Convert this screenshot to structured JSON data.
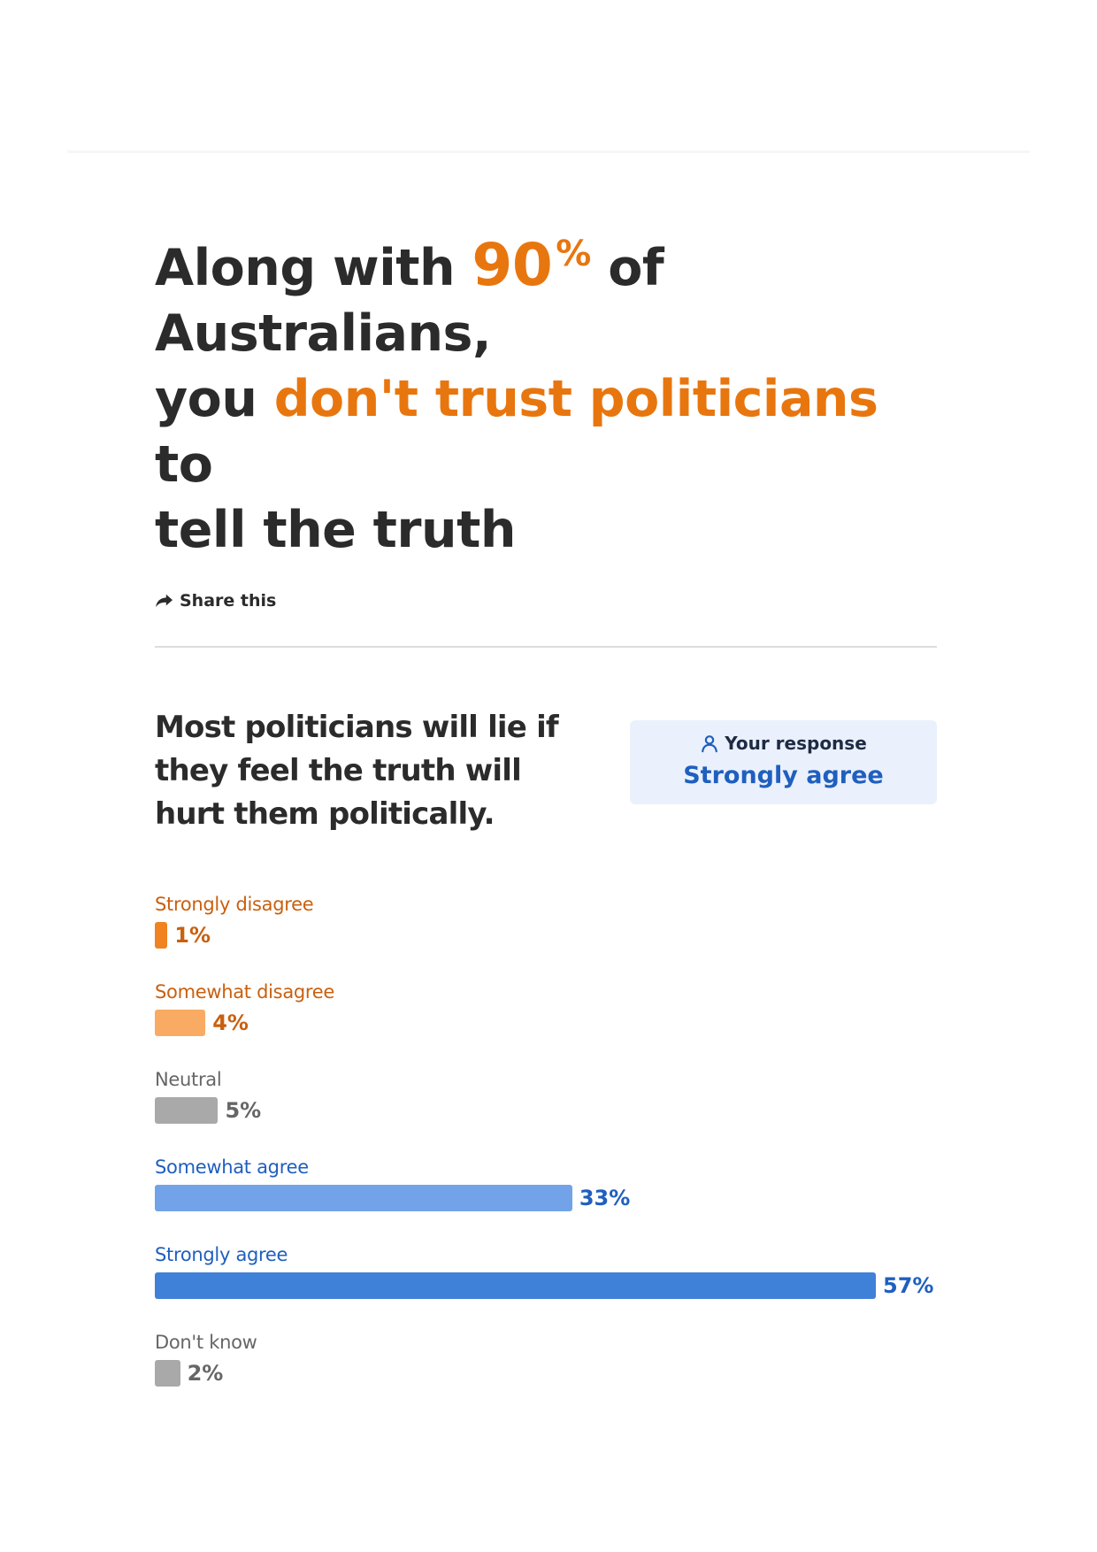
{
  "headline": {
    "line1_pre": "Along with ",
    "pct_number": "90",
    "pct_sign": "%",
    "line1_post": " of Australians,",
    "line2_pre": "you ",
    "line2_accent": "don't trust politicians",
    "line2_post": " to",
    "line3": "tell the truth"
  },
  "share": {
    "label": "Share this",
    "icon": "share-arrow-icon"
  },
  "question": "Most politicians will lie if they feel the truth will hurt them politically.",
  "response": {
    "label": "Your response",
    "icon": "person-icon",
    "value": "Strongly agree"
  },
  "colors": {
    "accent": "#e8760f",
    "text": "#2b2b2b",
    "response_bg": "#eaf1fc",
    "response_value": "#1f5fbf"
  },
  "chart_data": {
    "type": "bar",
    "orientation": "horizontal",
    "categories": [
      "Strongly disagree",
      "Somewhat disagree",
      "Neutral",
      "Somewhat agree",
      "Strongly agree",
      "Don't know"
    ],
    "values": [
      1,
      4,
      5,
      33,
      57,
      2
    ],
    "value_labels": [
      "1%",
      "4%",
      "5%",
      "33%",
      "57%",
      "2%"
    ],
    "bar_colors": [
      "#f0821f",
      "#f9ab63",
      "#a9a9a9",
      "#72a3e8",
      "#3f80d8",
      "#a9a9a9"
    ],
    "label_colors": [
      "#c9600f",
      "#c9600f",
      "#666666",
      "#1f5fbf",
      "#1f5fbf",
      "#666666"
    ],
    "unit": "%",
    "xlim": [
      0,
      57
    ]
  }
}
